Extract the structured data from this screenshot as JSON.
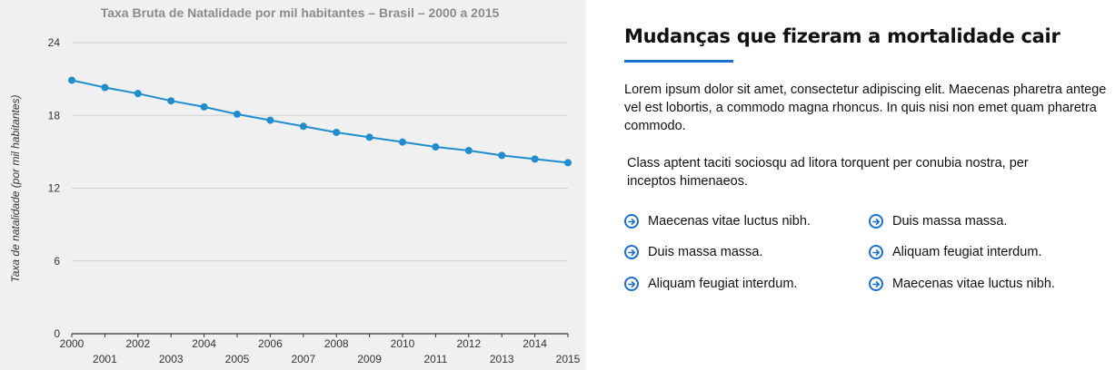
{
  "chart_data": {
    "type": "line",
    "title": "Taxa Bruta de Natalidade por mil habitantes – Brasil – 2000 a 2015",
    "ylabel": "Taxa de natalidade (por mil habitantes)",
    "xlabel": "",
    "x": [
      2000,
      2001,
      2002,
      2003,
      2004,
      2005,
      2006,
      2007,
      2008,
      2009,
      2010,
      2011,
      2012,
      2013,
      2014,
      2015
    ],
    "series": [
      {
        "values": [
          20.9,
          20.3,
          19.8,
          19.2,
          18.7,
          18.1,
          17.6,
          17.1,
          16.6,
          16.2,
          15.8,
          15.4,
          15.1,
          14.7,
          14.4,
          14.1
        ]
      }
    ],
    "ylim": [
      0,
      24
    ],
    "yticks": [
      "0",
      "6",
      "12",
      "18",
      "24"
    ],
    "xtick_labels": [
      "2000",
      "2001",
      "2002",
      "2003",
      "2004",
      "2005",
      "2006",
      "2007",
      "2008",
      "2009",
      "2010",
      "2011",
      "2012",
      "2013",
      "2014",
      "2015"
    ],
    "grid": true,
    "legend": "none",
    "line_color": "#1f8dcf"
  },
  "article": {
    "heading": "Mudanças que fizeram a mortalidade cair",
    "paragraph1": "Lorem ipsum dolor sit amet, consectetur adipiscing elit. Maecenas pharetra antege vel est lobortis, a commodo magna rhoncus. In quis nisi non emet quam pharetra commodo.",
    "paragraph2": "Class aptent taciti sociosqu ad litora torquent per conubia nostra, per inceptos himenaeos.",
    "accent_color": "#1a6fd0",
    "bullets": [
      {
        "label": "Maecenas vitae luctus nibh.",
        "icon": "arrow-right-circle-icon"
      },
      {
        "label": "Duis massa massa.",
        "icon": "arrow-right-circle-icon"
      },
      {
        "label": "Duis massa massa.",
        "icon": "arrow-right-circle-icon"
      },
      {
        "label": "Aliquam feugiat interdum.",
        "icon": "arrow-right-circle-icon"
      },
      {
        "label": "Aliquam feugiat interdum.",
        "icon": "arrow-right-circle-icon"
      },
      {
        "label": "Maecenas vitae luctus nibh.",
        "icon": "arrow-right-circle-icon"
      }
    ]
  }
}
